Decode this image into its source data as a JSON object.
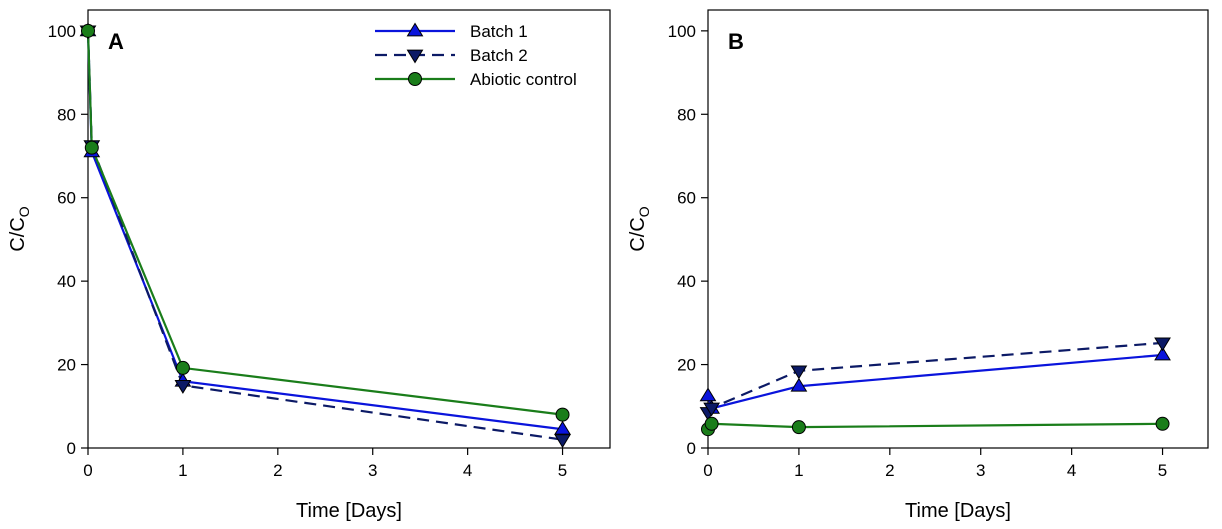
{
  "chart_data": [
    {
      "panel_label": "A",
      "type": "line",
      "xlabel": "Time [Days]",
      "ylabel_main": "C/C",
      "ylabel_sub": "O",
      "xlim": [
        0,
        5.5
      ],
      "ylim": [
        0,
        105
      ],
      "xticks": [
        0,
        1,
        2,
        3,
        4,
        5
      ],
      "yticks": [
        0,
        20,
        40,
        60,
        80,
        100
      ],
      "legend": "top-right",
      "grid": false,
      "series": [
        {
          "name": "Batch 1",
          "color": "#0a14dc",
          "dash": "solid",
          "marker": "triangle-up",
          "x": [
            0,
            0.04,
            1,
            5
          ],
          "y": [
            100,
            71,
            16,
            4.5
          ]
        },
        {
          "name": "Batch 2",
          "color": "#0c1a66",
          "dash": "dashed",
          "marker": "triangle-down",
          "x": [
            0,
            0.04,
            1,
            5
          ],
          "y": [
            100,
            72.5,
            15,
            2
          ]
        },
        {
          "name": "Abiotic control",
          "color": "#1a7d1a",
          "dash": "solid",
          "marker": "circle",
          "x": [
            0,
            0.04,
            1,
            5
          ],
          "y": [
            100,
            72,
            19.2,
            8
          ]
        }
      ]
    },
    {
      "panel_label": "B",
      "type": "line",
      "xlabel": "Time [Days]",
      "ylabel_main": "C/C",
      "ylabel_sub": "O",
      "xlim": [
        0,
        5.5
      ],
      "ylim": [
        0,
        105
      ],
      "xticks": [
        0,
        1,
        2,
        3,
        4,
        5
      ],
      "yticks": [
        0,
        20,
        40,
        60,
        80,
        100
      ],
      "legend": "none",
      "grid": false,
      "series": [
        {
          "name": "Batch 1",
          "color": "#0a14dc",
          "dash": "solid",
          "marker": "triangle-up",
          "x": [
            0,
            0.04,
            1,
            5
          ],
          "y": [
            12.5,
            9.5,
            14.8,
            22.3
          ]
        },
        {
          "name": "Batch 2",
          "color": "#0c1a66",
          "dash": "dashed",
          "marker": "triangle-down",
          "x": [
            0,
            0.04,
            1,
            5
          ],
          "y": [
            8.5,
            9.6,
            18.5,
            25.2
          ]
        },
        {
          "name": "Abiotic control",
          "color": "#1a7d1a",
          "dash": "solid",
          "marker": "circle",
          "x": [
            0,
            0.04,
            1,
            5
          ],
          "y": [
            4.5,
            5.8,
            5.0,
            5.8
          ]
        }
      ]
    }
  ]
}
